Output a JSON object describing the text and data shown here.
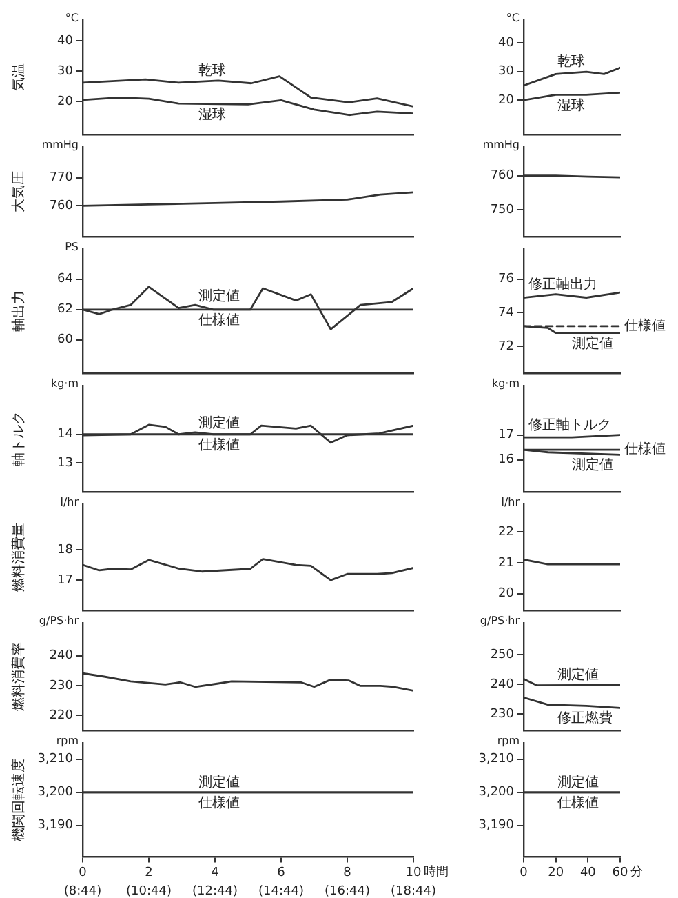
{
  "chart_data": [
    {
      "type": "line",
      "ylabel": "気温",
      "annotations": [
        "°C"
      ],
      "xlim": [
        0,
        10
      ],
      "ylim": [
        9,
        47
      ],
      "yticks": [
        20,
        30,
        40
      ],
      "tick_labels": "y",
      "series": [
        {
          "name": "乾球",
          "color": "#333333",
          "x": [
            0,
            1.9,
            2.9,
            4.1,
            5.1,
            5.95,
            6.9,
            8.05,
            8.9,
            10
          ],
          "values": [
            26.2,
            27.3,
            26.2,
            26.9,
            26.0,
            28.3,
            21.3,
            19.7,
            21.0,
            18.3
          ]
        },
        {
          "name": "湿球",
          "color": "#333333",
          "x": [
            0,
            1.1,
            2,
            2.9,
            5,
            6,
            7,
            8.05,
            8.9,
            10
          ],
          "values": [
            20.5,
            21.3,
            20.9,
            19.3,
            19.0,
            20.4,
            17.3,
            15.5,
            16.6,
            16.0
          ]
        }
      ]
    },
    {
      "type": "line",
      "annotations": [
        "°C"
      ],
      "xlim": [
        0,
        60
      ],
      "ylim": [
        8,
        48
      ],
      "yticks": [
        20,
        30,
        40
      ],
      "tick_labels": "y",
      "series": [
        {
          "name": "乾球",
          "color": "#333333",
          "x": [
            0,
            20,
            39,
            50,
            60
          ],
          "values": [
            25.1,
            29.1,
            29.9,
            29.1,
            31.3
          ]
        },
        {
          "name": "湿球",
          "color": "#333333",
          "x": [
            0,
            20,
            39,
            60
          ],
          "values": [
            20,
            21.9,
            21.9,
            22.6
          ]
        }
      ]
    },
    {
      "type": "line",
      "ylabel": "大気圧",
      "annotations": [
        "mmHg"
      ],
      "xlim": [
        0,
        10
      ],
      "ylim": [
        749,
        781
      ],
      "yticks": [
        760,
        770
      ],
      "tick_labels": "y",
      "series": [
        {
          "color": "#333333",
          "x": [
            0,
            2,
            4,
            6,
            8,
            9,
            10
          ],
          "values": [
            760,
            760.5,
            761,
            761.5,
            762.2,
            764,
            764.8
          ]
        }
      ]
    },
    {
      "type": "line",
      "annotations": [
        "mmHg"
      ],
      "xlim": [
        0,
        60
      ],
      "ylim": [
        742,
        768.5
      ],
      "yticks": [
        750,
        760
      ],
      "tick_labels": "y",
      "series": [
        {
          "color": "#333333",
          "x": [
            0,
            20,
            40,
            60
          ],
          "values": [
            760,
            760,
            759.7,
            759.5
          ]
        }
      ]
    },
    {
      "type": "line",
      "ylabel": "軸出力",
      "annotations": [
        "PS"
      ],
      "xlim": [
        0,
        10
      ],
      "ylim": [
        57.8,
        66
      ],
      "yticks": [
        60,
        62,
        64
      ],
      "tick_labels": "y",
      "series": [
        {
          "name": "測定値",
          "color": "#333333",
          "x": [
            0,
            0.5,
            0.9,
            1.45,
            2,
            2.9,
            3.4,
            3.95,
            5.07,
            5.45,
            6.45,
            6.9,
            7.5,
            8.4,
            9.35,
            10
          ],
          "values": [
            62,
            61.7,
            62,
            62.3,
            63.5,
            62.1,
            62.3,
            62,
            62,
            63.4,
            62.6,
            63,
            60.7,
            62.3,
            62.5,
            63.4
          ]
        },
        {
          "name": "仕様値",
          "color": "#333333",
          "x": [
            0,
            10
          ],
          "values": [
            62,
            62
          ]
        }
      ]
    },
    {
      "type": "line",
      "xlim": [
        0,
        60
      ],
      "ylim": [
        70.4,
        77.8
      ],
      "yticks": [
        72,
        74,
        76
      ],
      "tick_labels": "y",
      "series": [
        {
          "name": "修正軸出力",
          "color": "#333333",
          "x": [
            0,
            20,
            39,
            60
          ],
          "values": [
            74.9,
            75.1,
            74.9,
            75.2
          ]
        },
        {
          "name": "仕様値",
          "color": "#333333",
          "line_style": "dashed",
          "x": [
            0,
            60
          ],
          "values": [
            73.2,
            73.2
          ]
        },
        {
          "name": "測定値",
          "color": "#333333",
          "x": [
            0,
            15,
            20,
            60
          ],
          "values": [
            73.2,
            73.1,
            72.8,
            72.8
          ]
        }
      ]
    },
    {
      "type": "line",
      "ylabel": "軸トルク",
      "annotations": [
        "kg·m"
      ],
      "xlim": [
        0,
        10
      ],
      "ylim": [
        12,
        15.7
      ],
      "yticks": [
        13,
        14
      ],
      "tick_labels": "y",
      "series": [
        {
          "name": "測定値",
          "color": "#333333",
          "x": [
            0,
            1.45,
            2,
            2.5,
            2.9,
            3.4,
            3.95,
            5.07,
            5.4,
            6.45,
            6.9,
            7.5,
            8,
            8.97,
            10
          ],
          "values": [
            13.97,
            14.0,
            14.33,
            14.26,
            14.0,
            14.07,
            14.0,
            14.0,
            14.3,
            14.2,
            14.3,
            13.71,
            13.97,
            14.03,
            14.3
          ]
        },
        {
          "name": "仕様値",
          "color": "#333333",
          "x": [
            0,
            10
          ],
          "values": [
            14,
            14
          ]
        }
      ]
    },
    {
      "type": "line",
      "annotations": [
        "kg·m"
      ],
      "xlim": [
        0,
        60
      ],
      "ylim": [
        14.7,
        19
      ],
      "yticks": [
        16,
        17
      ],
      "tick_labels": "y",
      "series": [
        {
          "name": "修正軸トルク",
          "color": "#333333",
          "x": [
            0,
            30,
            60
          ],
          "values": [
            16.9,
            16.9,
            17.0
          ]
        },
        {
          "name": "仕様値",
          "color": "#333333",
          "x": [
            0,
            60
          ],
          "values": [
            16.4,
            16.4
          ]
        },
        {
          "name": "測定値",
          "color": "#333333",
          "x": [
            0,
            15,
            60
          ],
          "values": [
            16.4,
            16.3,
            16.2
          ]
        }
      ]
    },
    {
      "type": "line",
      "ylabel": "燃料消費量",
      "annotations": [
        "l/hr"
      ],
      "xlim": [
        0,
        10
      ],
      "ylim": [
        16,
        19.5
      ],
      "yticks": [
        17,
        18
      ],
      "tick_labels": "y",
      "series": [
        {
          "color": "#333333",
          "x": [
            0,
            0.5,
            0.9,
            1.45,
            2,
            2.9,
            3.6,
            5.07,
            5.45,
            6.45,
            6.9,
            7.5,
            8,
            8.9,
            9.35,
            10
          ],
          "values": [
            17.5,
            17.32,
            17.37,
            17.35,
            17.66,
            17.38,
            17.28,
            17.37,
            17.69,
            17.5,
            17.47,
            17.0,
            17.2,
            17.2,
            17.23,
            17.4
          ]
        }
      ]
    },
    {
      "type": "line",
      "annotations": [
        "l/hr"
      ],
      "xlim": [
        0,
        60
      ],
      "ylim": [
        19.45,
        22.9
      ],
      "yticks": [
        20,
        21,
        22
      ],
      "tick_labels": "y",
      "series": [
        {
          "color": "#333333",
          "x": [
            0,
            15,
            60
          ],
          "values": [
            21.1,
            20.95,
            20.95
          ]
        }
      ]
    },
    {
      "type": "line",
      "ylabel": "燃料消費率",
      "annotations": [
        "g/PS·hr"
      ],
      "xlim": [
        0,
        10
      ],
      "ylim": [
        215,
        251
      ],
      "yticks": [
        220,
        230,
        240
      ],
      "tick_labels": "y",
      "series": [
        {
          "color": "#333333",
          "x": [
            0,
            0.65,
            1.45,
            2.5,
            2.95,
            3.4,
            4.1,
            4.5,
            6.6,
            7,
            7.5,
            8.05,
            8.4,
            9,
            9.4,
            10
          ],
          "values": [
            234.1,
            233,
            231.4,
            230.4,
            231.1,
            229.6,
            230.7,
            231.4,
            231.1,
            229.6,
            232,
            231.7,
            229.9,
            229.9,
            229.6,
            228.3
          ]
        }
      ]
    },
    {
      "type": "line",
      "annotations": [
        "g/PS·hr"
      ],
      "xlim": [
        0,
        60
      ],
      "ylim": [
        224.5,
        260.7
      ],
      "yticks": [
        230,
        240,
        250
      ],
      "tick_labels": "y",
      "series": [
        {
          "name": "測定値",
          "color": "#333333",
          "x": [
            0,
            8,
            60
          ],
          "values": [
            241.8,
            239.7,
            239.8
          ]
        },
        {
          "name": "修正燃費",
          "color": "#333333",
          "x": [
            0,
            15,
            39,
            60
          ],
          "values": [
            235.6,
            233.2,
            232.8,
            232.1
          ]
        }
      ]
    },
    {
      "type": "line",
      "ylabel": "機関回転速度",
      "annotations": [
        "rpm",
        "(8:44)",
        "(10:44)",
        "(12:44)",
        "(14:44)",
        "(16:44)",
        "(18:44)"
      ],
      "xlabel": "時間",
      "xlim": [
        0,
        10
      ],
      "xticks": [
        0,
        2,
        4,
        6,
        8,
        10
      ],
      "ylim": [
        3180.5,
        3215
      ],
      "yticks": [
        {
          "value": 3190,
          "label": "3,190"
        },
        {
          "value": 3200,
          "label": "3,200"
        },
        {
          "value": 3210,
          "label": "3,210"
        }
      ],
      "series": [
        {
          "name": "測定値",
          "color": "#333333",
          "x": [
            0,
            10
          ],
          "values": [
            3200,
            3200
          ]
        },
        {
          "name": "仕様値",
          "color": "#333333",
          "x": [
            0,
            10
          ],
          "values": [
            3200,
            3200
          ]
        }
      ]
    },
    {
      "type": "line",
      "annotations": [
        "rpm"
      ],
      "xlabel": "分",
      "xlim": [
        0,
        60
      ],
      "xticks": [
        0,
        20,
        40,
        60
      ],
      "ylim": [
        3180.5,
        3215
      ],
      "yticks": [
        {
          "value": 3190,
          "label": "3,190"
        },
        {
          "value": 3200,
          "label": "3,200"
        },
        {
          "value": 3210,
          "label": "3,210"
        }
      ],
      "series": [
        {
          "name": "測定値",
          "color": "#333333",
          "x": [
            0,
            60
          ],
          "values": [
            3200,
            3200
          ]
        },
        {
          "name": "仕様値",
          "color": "#333333",
          "x": [
            0,
            60
          ],
          "values": [
            3200,
            3200
          ]
        }
      ]
    }
  ]
}
